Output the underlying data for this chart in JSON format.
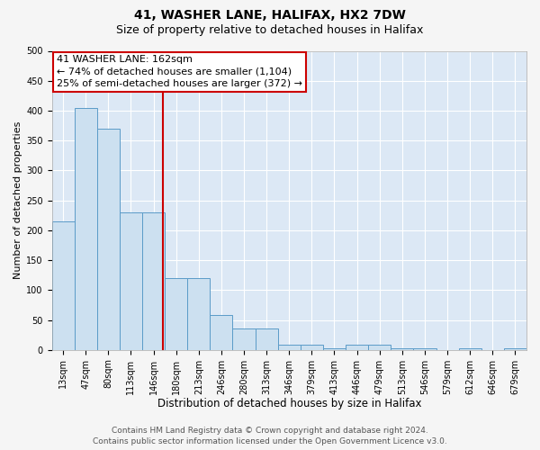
{
  "title1": "41, WASHER LANE, HALIFAX, HX2 7DW",
  "title2": "Size of property relative to detached houses in Halifax",
  "xlabel": "Distribution of detached houses by size in Halifax",
  "ylabel": "Number of detached properties",
  "categories": [
    "13sqm",
    "47sqm",
    "80sqm",
    "113sqm",
    "146sqm",
    "180sqm",
    "213sqm",
    "246sqm",
    "280sqm",
    "313sqm",
    "346sqm",
    "379sqm",
    "413sqm",
    "446sqm",
    "479sqm",
    "513sqm",
    "546sqm",
    "579sqm",
    "612sqm",
    "646sqm",
    "679sqm"
  ],
  "values": [
    215,
    405,
    370,
    230,
    230,
    120,
    120,
    58,
    35,
    35,
    8,
    8,
    2,
    8,
    8,
    2,
    2,
    0,
    2,
    0,
    2
  ],
  "bar_color": "#cce0f0",
  "bar_edge_color": "#5b9bc8",
  "background_color": "#dce8f5",
  "grid_color": "#ffffff",
  "red_line_x": 4.42,
  "red_line_color": "#cc0000",
  "annotation_line1": "41 WASHER LANE: 162sqm",
  "annotation_line2": "← 74% of detached houses are smaller (1,104)",
  "annotation_line3": "25% of semi-detached houses are larger (372) →",
  "annotation_box_edge": "#cc0000",
  "annotation_box_bg": "#ffffff",
  "ylim": [
    0,
    500
  ],
  "yticks": [
    0,
    50,
    100,
    150,
    200,
    250,
    300,
    350,
    400,
    450,
    500
  ],
  "footer1": "Contains HM Land Registry data © Crown copyright and database right 2024.",
  "footer2": "Contains public sector information licensed under the Open Government Licence v3.0.",
  "title1_fontsize": 10,
  "title2_fontsize": 9,
  "xlabel_fontsize": 8.5,
  "ylabel_fontsize": 8,
  "tick_fontsize": 7,
  "annotation_fontsize": 8,
  "footer_fontsize": 6.5,
  "fig_bg": "#f5f5f5"
}
